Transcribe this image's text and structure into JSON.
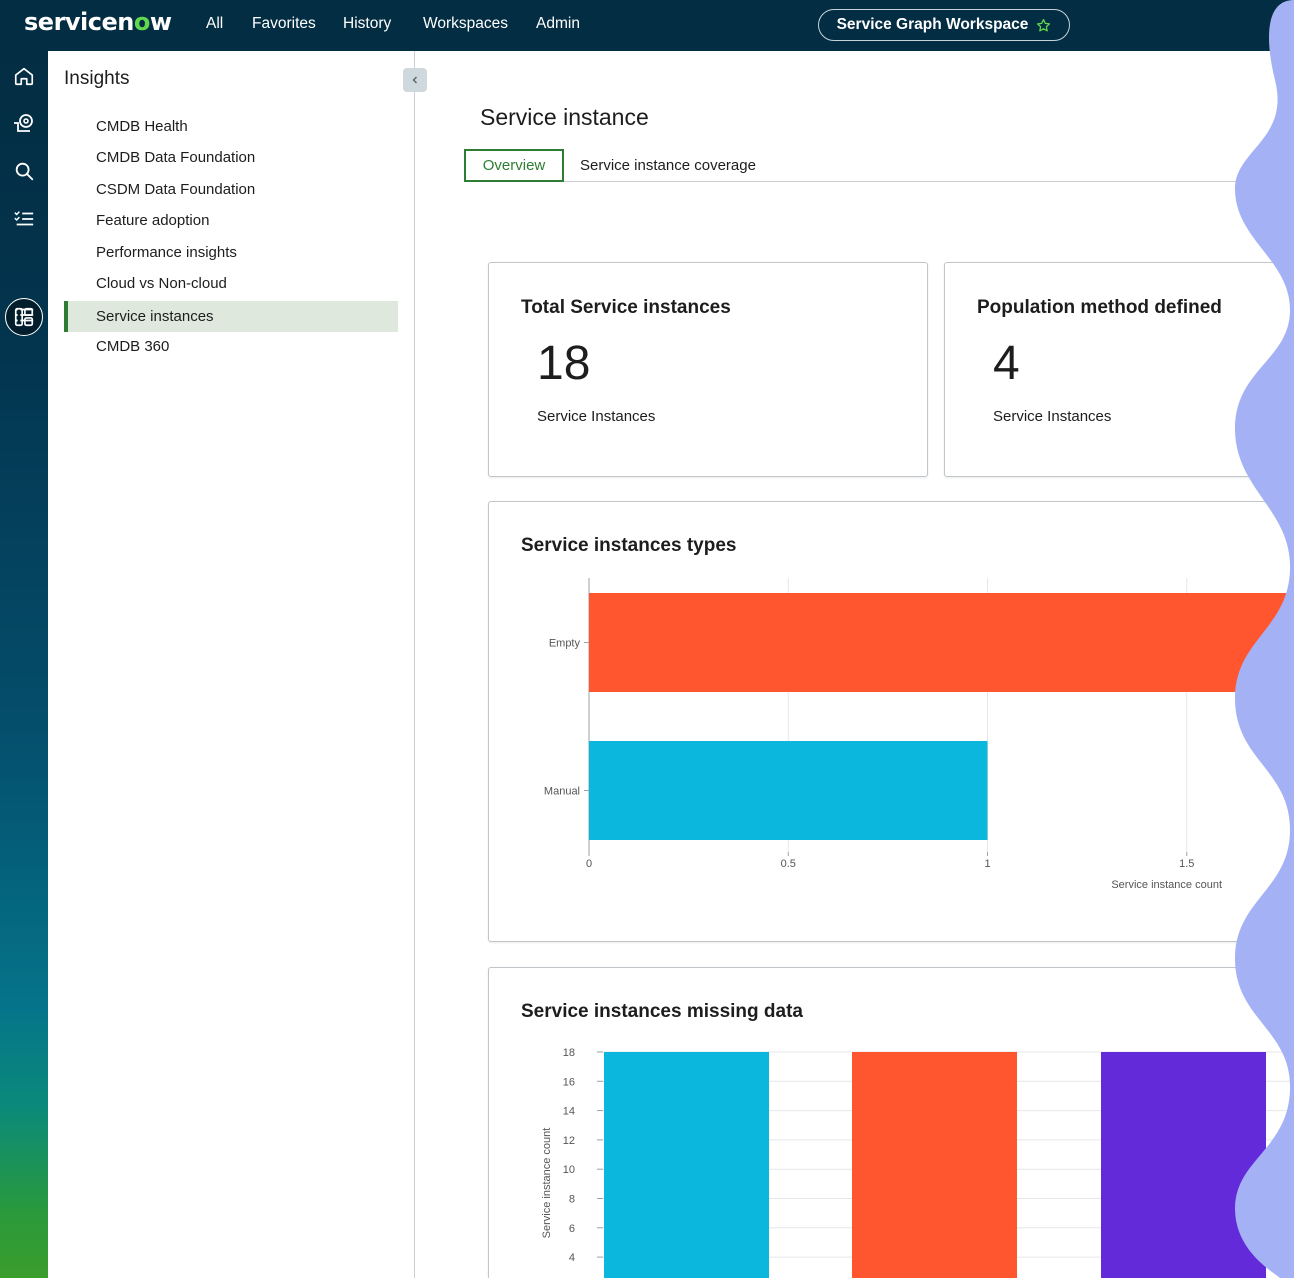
{
  "topbar": {
    "logo_prefix": "servicen",
    "logo_o": "o",
    "logo_suffix": "w",
    "nav": [
      "All",
      "Favorites",
      "History",
      "Workspaces",
      "Admin"
    ],
    "workspace": "Service Graph Workspace"
  },
  "rail": {
    "icons": [
      "home-icon",
      "workflow-icon",
      "search-icon",
      "checklist-icon",
      "workspace-icon",
      "list-icon"
    ],
    "active": "workspace-icon"
  },
  "sidebar": {
    "title": "Insights",
    "items": [
      {
        "label": "CMDB Health"
      },
      {
        "label": "CMDB Data Foundation"
      },
      {
        "label": "CSDM Data Foundation"
      },
      {
        "label": "Feature adoption"
      },
      {
        "label": "Performance insights"
      },
      {
        "label": "Cloud vs Non-cloud"
      },
      {
        "label": "Service instances",
        "active": true
      },
      {
        "label": "CMDB 360"
      }
    ]
  },
  "main": {
    "title": "Service instance",
    "tabs": [
      {
        "label": "Overview",
        "active": true
      },
      {
        "label": "Service instance coverage"
      }
    ],
    "metrics": [
      {
        "title": "Total Service instances",
        "value": "18",
        "label": "Service Instances"
      },
      {
        "title": "Population method defined",
        "value": "4",
        "label": "Service Instances"
      }
    ]
  },
  "colors": {
    "accent_green": "#2e7d32",
    "nav_bg": "#032d42",
    "orange": "#ff5630",
    "cyan": "#0bb7dc",
    "purple": "#632ad9"
  },
  "chart_data": [
    {
      "type": "bar",
      "orientation": "horizontal",
      "title": "Service instances types",
      "categories": [
        "Empty",
        "Manual"
      ],
      "values": [
        2,
        1
      ],
      "colors": [
        "#ff5630",
        "#0bb7dc"
      ],
      "xlabel": "Service instance count",
      "ylabel": "",
      "xlim": [
        0,
        2
      ],
      "x_ticks": [
        "0",
        "0.5",
        "1",
        "1.5"
      ],
      "grid": true
    },
    {
      "type": "bar",
      "title": "Service instances missing data",
      "values": [
        18,
        18,
        18
      ],
      "colors": [
        "#0bb7dc",
        "#ff5630",
        "#632ad9"
      ],
      "xlabel": "",
      "ylabel": "Service instance count",
      "ylim": [
        0,
        18
      ],
      "y_ticks": [
        "18",
        "16",
        "14",
        "12",
        "10",
        "8",
        "6",
        "4"
      ],
      "grid": true
    }
  ]
}
